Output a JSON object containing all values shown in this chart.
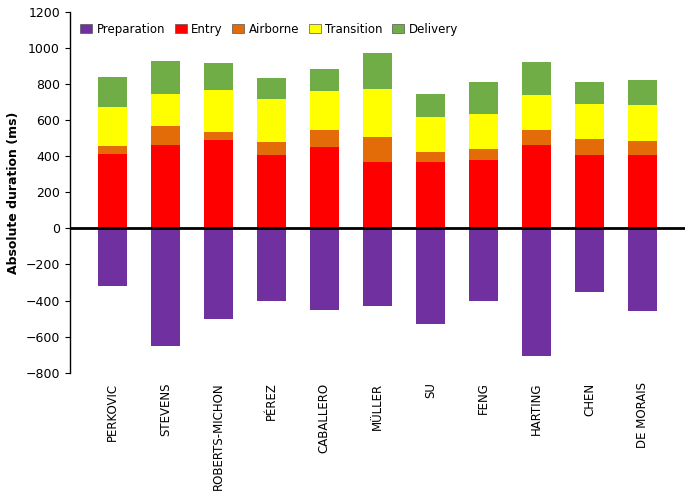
{
  "categories": [
    "PERKOVIC",
    "STEVENS",
    "ROBERTS-MICHON",
    "PÉREZ",
    "CABALLERO",
    "MÜLLER",
    "SU",
    "FENG",
    "HARTING",
    "CHEN",
    "DE MORAIS"
  ],
  "preparation": [
    -320,
    -650,
    -500,
    -400,
    -450,
    -430,
    -530,
    -400,
    -710,
    -350,
    -460
  ],
  "entry": [
    410,
    460,
    490,
    405,
    450,
    370,
    370,
    380,
    460,
    405,
    405
  ],
  "airborne": [
    45,
    110,
    45,
    75,
    95,
    135,
    55,
    60,
    85,
    90,
    80
  ],
  "transition": [
    220,
    175,
    235,
    235,
    215,
    270,
    195,
    195,
    195,
    195,
    200
  ],
  "delivery": [
    165,
    185,
    145,
    120,
    125,
    195,
    125,
    175,
    185,
    120,
    135
  ],
  "colors": {
    "preparation": "#7030a0",
    "entry": "#ff0000",
    "airborne": "#e36c09",
    "transition": "#ffff00",
    "delivery": "#70ad47"
  },
  "ylabel": "Absolute duration (ms)",
  "ylim": [
    -800,
    1200
  ],
  "yticks": [
    -800,
    -600,
    -400,
    -200,
    0,
    200,
    400,
    600,
    800,
    1000,
    1200
  ],
  "legend_labels": [
    "Preparation",
    "Entry",
    "Airborne",
    "Transition",
    "Delivery"
  ],
  "background_color": "#ffffff",
  "figsize": [
    6.92,
    4.97
  ],
  "dpi": 100
}
